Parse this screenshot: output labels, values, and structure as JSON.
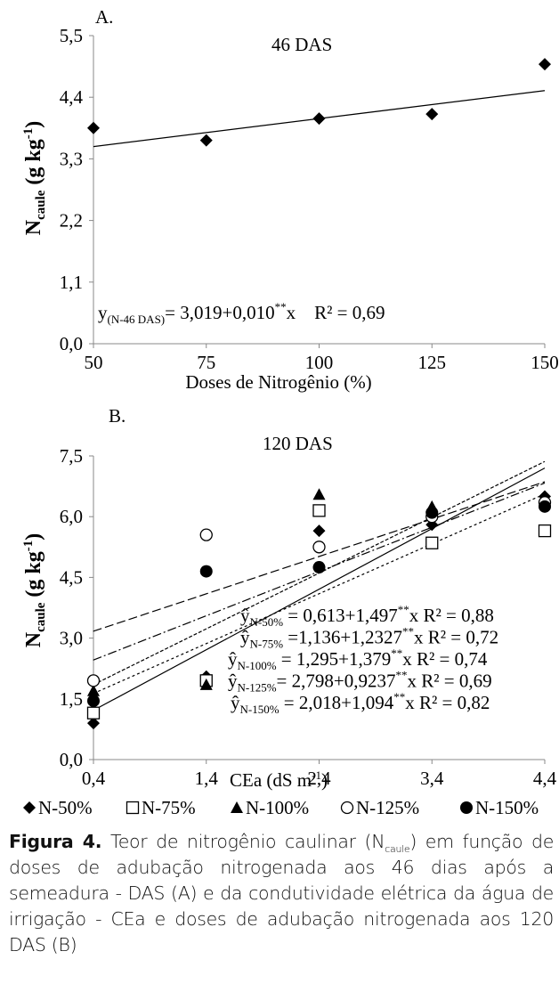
{
  "chart_data": [
    {
      "type": "scatter",
      "panel_label": "A.",
      "title": "46 DAS",
      "xlabel": "Doses de Nitrogênio (%)",
      "ylabel_main": "N",
      "ylabel_sub": "caule",
      "ylabel_unit": "(g kg",
      "ylabel_sup": "-1",
      "ylabel_close": ")",
      "xlim": [
        50,
        150
      ],
      "ylim": [
        0,
        5.5
      ],
      "xticks": [
        "50",
        "75",
        "100",
        "125",
        "150"
      ],
      "yticks": [
        "0,0",
        "1,1",
        "2,2",
        "3,3",
        "4,4",
        "5,5"
      ],
      "points": [
        {
          "x": 50,
          "y": 3.85
        },
        {
          "x": 75,
          "y": 3.63
        },
        {
          "x": 100,
          "y": 4.02
        },
        {
          "x": 125,
          "y": 4.1
        },
        {
          "x": 150,
          "y": 4.99
        }
      ],
      "fit": {
        "intercept": 3.019,
        "slope": 0.01
      },
      "equation": {
        "lhs": "y",
        "sub": "(N-46 DAS)",
        "rhs": "= 3,019+0,010",
        "sup": "**",
        "tail": "x    R² = 0,69"
      }
    },
    {
      "type": "scatter",
      "panel_label": "B.",
      "title": "120 DAS",
      "xlabel": "CEa (dS m",
      "xlabel_sup": "-1",
      "xlabel_close": ")",
      "ylabel_main": "N",
      "ylabel_sub": "caule",
      "ylabel_unit": "(g kg",
      "ylabel_sup": "-1",
      "ylabel_close": ")",
      "xlim": [
        0.4,
        4.4
      ],
      "ylim": [
        0,
        7.5
      ],
      "x_values": [
        0.4,
        1.4,
        2.4,
        3.4,
        4.4
      ],
      "xticks": [
        "0,4",
        "1,4",
        "2,4",
        "3,4",
        "4,4"
      ],
      "yticks": [
        "0,0",
        "1,5",
        "3,0",
        "4,5",
        "6,0",
        "7,5"
      ],
      "series": [
        {
          "name": "N-50%",
          "marker": "diamond",
          "values": [
            0.9,
            2.05,
            5.65,
            5.8,
            6.5
          ],
          "fit": [
            0.613,
            1.497
          ],
          "dash": "",
          "eq_sub": "N-50%",
          "eq_rhs": " = 0,613+1,497",
          "eq_tail": "x  R² = 0,88"
        },
        {
          "name": "N-75%",
          "marker": "square",
          "values": [
            1.15,
            1.95,
            6.15,
            5.35,
            5.65
          ],
          "fit": [
            1.136,
            1.2327
          ],
          "dash": "3,3",
          "eq_sub": "N-75%",
          "eq_rhs": " =1,136+1,2327",
          "eq_tail": "x  R² = 0,72"
        },
        {
          "name": "N-100%",
          "marker": "triangle",
          "values": [
            1.7,
            1.85,
            6.55,
            6.25,
            6.4
          ],
          "fit": [
            1.295,
            1.379
          ],
          "dash": "4,2",
          "eq_sub": "N-100%",
          "eq_rhs": " =  1,295+1,379",
          "eq_tail": "x   R² = 0,74"
        },
        {
          "name": "N-125%",
          "marker": "circle-open",
          "values": [
            1.95,
            5.55,
            5.25,
            6.0,
            6.35
          ],
          "fit": [
            2.798,
            0.9237
          ],
          "dash": "10,4",
          "eq_sub": "N-125%",
          "eq_rhs": "= 2,798+0,9237",
          "eq_tail": "x  R² = 0,69"
        },
        {
          "name": "N-150%",
          "marker": "circle",
          "values": [
            1.45,
            4.65,
            4.75,
            6.1,
            6.25
          ],
          "fit": [
            2.018,
            1.094
          ],
          "dash": "10,3,2,3",
          "eq_sub": "N-150%",
          "eq_rhs": " = 2,018+1,094",
          "eq_tail": "x     R² = 0,82"
        }
      ],
      "eq_lhs": "ŷ",
      "eq_sup": "**"
    }
  ],
  "caption": {
    "fig_label": "Figura 4.",
    "part1": " Teor de nitrogênio caulinar (N",
    "sub": "caule",
    "part2": ") em função de doses de adubação nitrogenada aos 46 dias após a semeadura - DAS (A) e da condutividade elétrica da água de irrigação - CEa e doses de adubação nitrogenada aos 120 DAS (B)"
  }
}
